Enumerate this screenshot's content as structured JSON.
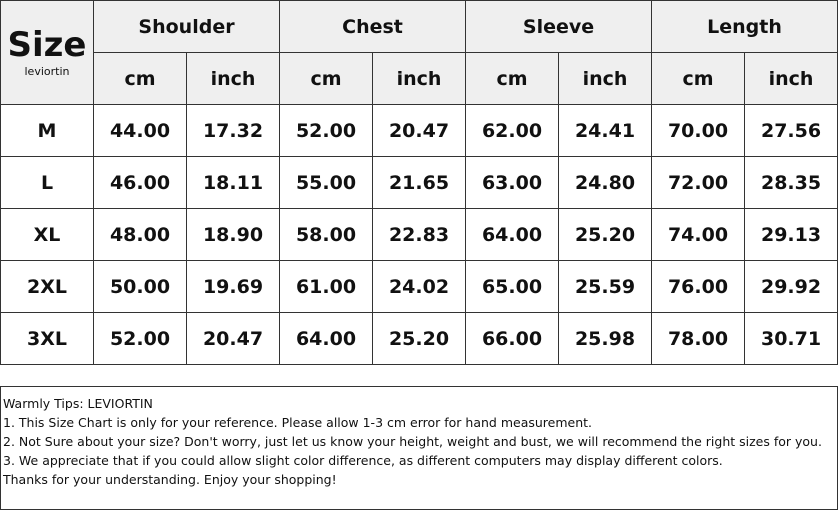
{
  "header": {
    "size_title": "Size",
    "brand": "leviortin",
    "groups": [
      "Shoulder",
      "Chest",
      "Sleeve",
      "Length"
    ],
    "units": [
      "cm",
      "inch",
      "cm",
      "inch",
      "cm",
      "inch",
      "cm",
      "inch"
    ]
  },
  "table": {
    "rows": [
      [
        "M",
        "44.00",
        "17.32",
        "52.00",
        "20.47",
        "62.00",
        "24.41",
        "70.00",
        "27.56"
      ],
      [
        "L",
        "46.00",
        "18.11",
        "55.00",
        "21.65",
        "63.00",
        "24.80",
        "72.00",
        "28.35"
      ],
      [
        "XL",
        "48.00",
        "18.90",
        "58.00",
        "22.83",
        "64.00",
        "25.20",
        "74.00",
        "29.13"
      ],
      [
        "2XL",
        "50.00",
        "19.69",
        "61.00",
        "24.02",
        "65.00",
        "25.59",
        "76.00",
        "29.92"
      ],
      [
        "3XL",
        "52.00",
        "20.47",
        "64.00",
        "25.20",
        "66.00",
        "25.98",
        "78.00",
        "30.71"
      ]
    ]
  },
  "notes": {
    "lines": [
      "Warmly Tips: LEVIORTIN",
      "1. This Size Chart is only for your reference. Please allow 1-3 cm error for hand measurement.",
      "2. Not Sure about your size? Don't worry, just let us know your height, weight and bust, we will recommend the right sizes for you.",
      "3. We appreciate that if you could allow slight color difference, as different computers may display different colors.",
      "Thanks for your understanding. Enjoy your shopping!"
    ]
  }
}
